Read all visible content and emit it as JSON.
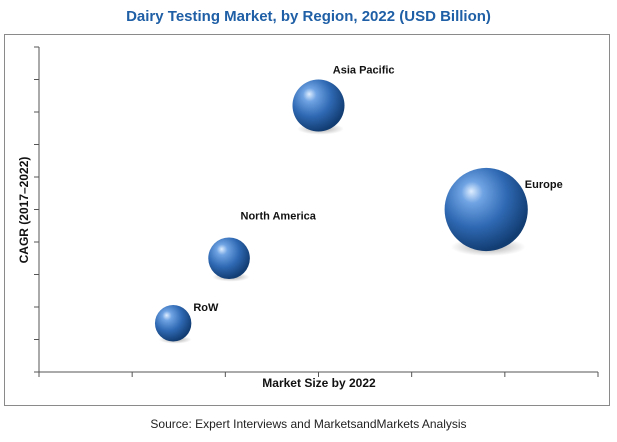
{
  "chart_data": {
    "type": "scatter",
    "title": "Dairy Testing Market, by Region, 2022 (USD Billion)",
    "xlabel": "Market Size by 2022",
    "ylabel": "CAGR (2017–2022)",
    "grid": false,
    "legend": "none",
    "series": [
      {
        "label": "Asia Pacific",
        "x": 5.0,
        "y": 8.2,
        "size": 1.0
      },
      {
        "label": "Europe",
        "x": 8.0,
        "y": 5.0,
        "size": 1.6
      },
      {
        "label": "North America",
        "x": 3.4,
        "y": 3.5,
        "size": 0.8
      },
      {
        "label": "RoW",
        "x": 2.4,
        "y": 1.5,
        "size": 0.7
      }
    ],
    "xlim": [
      0,
      10
    ],
    "ylim": [
      0,
      10
    ],
    "x_ticks": 7,
    "y_ticks": 10,
    "bubble_color": "#3a78c8"
  },
  "source": "Source: Expert Interviews and MarketsandMarkets Analysis"
}
